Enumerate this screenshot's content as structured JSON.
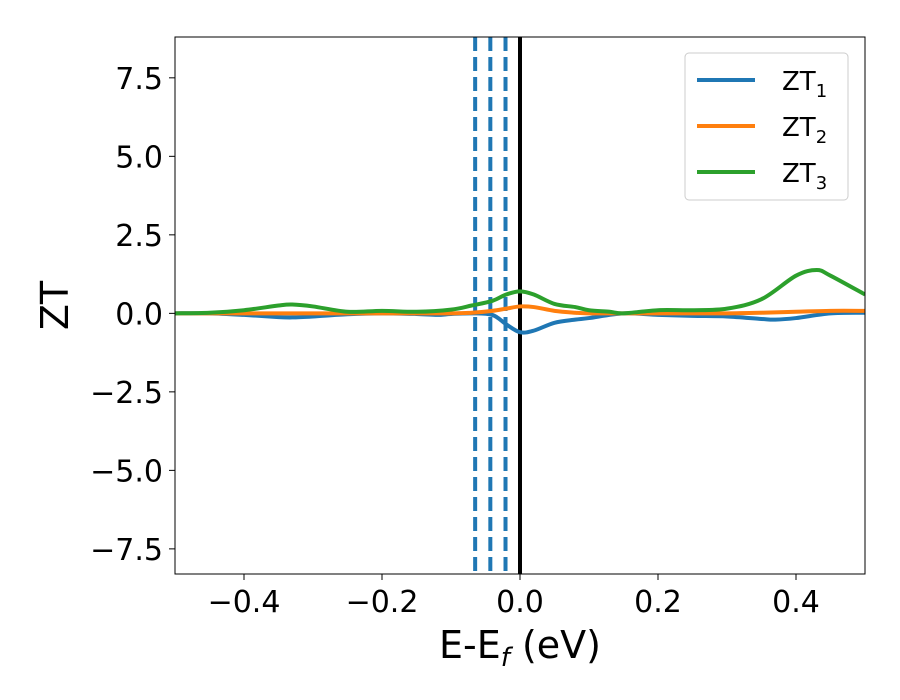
{
  "chart_data": {
    "type": "line",
    "xlabel": "E-E",
    "xlabel_sub": "f",
    "xlabel_unit": " (eV)",
    "ylabel": "ZT",
    "xlim": [
      -0.5,
      0.5
    ],
    "ylim": [
      -8.3,
      8.8
    ],
    "xticks": [
      -0.4,
      -0.2,
      0.0,
      0.2,
      0.4
    ],
    "xtick_labels": [
      "−0.4",
      "−0.2",
      "0.0",
      "0.2",
      "0.4"
    ],
    "yticks": [
      -7.5,
      -5.0,
      -2.5,
      0.0,
      2.5,
      5.0,
      7.5
    ],
    "ytick_labels": [
      "−7.5",
      "−5.0",
      "−2.5",
      "0.0",
      "2.5",
      "5.0",
      "7.5"
    ],
    "grid": false,
    "legend_position": "top-right",
    "vertical_lines": [
      {
        "x": -0.065,
        "style": "dashed",
        "color": "#1f77b4"
      },
      {
        "x": -0.043,
        "style": "dashed",
        "color": "#1f77b4"
      },
      {
        "x": -0.021,
        "style": "dashed",
        "color": "#1f77b4"
      },
      {
        "x": 0.0,
        "style": "solid",
        "color": "#000000"
      }
    ],
    "series": [
      {
        "name": "ZT",
        "name_sub": "1",
        "color": "#1f77b4",
        "x": [
          -0.5,
          -0.45,
          -0.4,
          -0.35,
          -0.33,
          -0.3,
          -0.25,
          -0.2,
          -0.15,
          -0.12,
          -0.1,
          -0.07,
          -0.04,
          -0.02,
          0.0,
          0.02,
          0.05,
          0.08,
          0.1,
          0.15,
          0.2,
          0.25,
          0.3,
          0.35,
          0.37,
          0.4,
          0.45,
          0.5
        ],
        "values": [
          0.0,
          0.0,
          -0.05,
          -0.12,
          -0.13,
          -0.1,
          -0.03,
          0.0,
          -0.02,
          -0.05,
          -0.02,
          0.0,
          -0.05,
          -0.35,
          -0.6,
          -0.55,
          -0.3,
          -0.2,
          -0.15,
          0.0,
          -0.05,
          -0.08,
          -0.1,
          -0.18,
          -0.2,
          -0.15,
          0.0,
          0.02
        ]
      },
      {
        "name": "ZT",
        "name_sub": "2",
        "color": "#ff7f0e",
        "x": [
          -0.5,
          -0.4,
          -0.3,
          -0.2,
          -0.1,
          -0.07,
          -0.04,
          -0.02,
          0.0,
          0.02,
          0.05,
          0.08,
          0.1,
          0.15,
          0.2,
          0.25,
          0.3,
          0.35,
          0.4,
          0.45,
          0.5
        ],
        "values": [
          0.0,
          0.0,
          0.0,
          0.0,
          0.0,
          0.02,
          0.08,
          0.15,
          0.22,
          0.2,
          0.08,
          0.02,
          0.0,
          0.0,
          0.0,
          0.0,
          0.0,
          0.02,
          0.05,
          0.08,
          0.08
        ]
      },
      {
        "name": "ZT",
        "name_sub": "3",
        "color": "#2ca02c",
        "x": [
          -0.5,
          -0.45,
          -0.4,
          -0.35,
          -0.33,
          -0.3,
          -0.25,
          -0.2,
          -0.15,
          -0.1,
          -0.07,
          -0.04,
          -0.02,
          0.0,
          0.02,
          0.05,
          0.08,
          0.1,
          0.13,
          0.15,
          0.2,
          0.25,
          0.3,
          0.35,
          0.4,
          0.43,
          0.45,
          0.5
        ],
        "values": [
          0.0,
          0.02,
          0.1,
          0.25,
          0.28,
          0.22,
          0.05,
          0.08,
          0.05,
          0.12,
          0.25,
          0.4,
          0.6,
          0.7,
          0.6,
          0.3,
          0.2,
          0.1,
          0.05,
          0.0,
          0.1,
          0.1,
          0.15,
          0.45,
          1.2,
          1.38,
          1.2,
          0.6
        ]
      }
    ]
  }
}
